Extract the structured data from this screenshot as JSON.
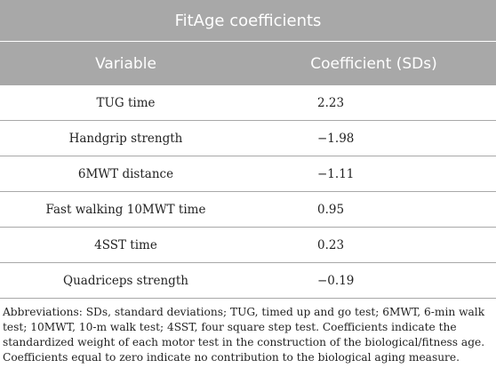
{
  "table": {
    "title": "FitAge coefficients",
    "header": [
      "Variable",
      "Coefficient (SDs)"
    ],
    "rows": [
      [
        "TUG time",
        "2.23"
      ],
      [
        "Handgrip strength",
        "−1.98"
      ],
      [
        "6MWT distance",
        "−1.11"
      ],
      [
        "Fast walking 10MWT time",
        "0.95"
      ],
      [
        "4SST time",
        "0.23"
      ],
      [
        "Quadriceps strength",
        "−0.19"
      ]
    ],
    "footnote": "Abbreviations: SDs, standard deviations; TUG, timed up and go test; 6MWT, 6-min walk test; 10MWT, 10-m walk test; 4SST, four square step test. Coefficients indicate the standardized weight of each motor test in the construction of the biological/fitness age. Coefficients equal to zero indicate no contribution to the biological aging measure."
  }
}
